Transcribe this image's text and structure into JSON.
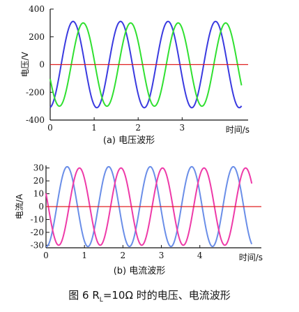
{
  "chart_data": [
    {
      "type": "line",
      "caption": "(a)  电压波形",
      "ylabel": "电压/V",
      "xlabel": "时间/s",
      "xlim": [
        0,
        4.5
      ],
      "ylim": [
        -400,
        400
      ],
      "x_ticks": [
        0,
        1,
        2,
        3
      ],
      "y_ticks": [
        400,
        200,
        0,
        -200,
        -400
      ],
      "reference_line": {
        "y": 0,
        "color": "#e02020"
      },
      "series": [
        {
          "color": "#3a3ae0",
          "amplitude": 311,
          "period": 1.08,
          "peak_x": 0.52,
          "x_range": [
            0,
            4.35
          ]
        },
        {
          "color": "#30e030",
          "amplitude": 300,
          "period": 1.08,
          "peak_x": 0.75,
          "x_range": [
            0,
            4.35
          ]
        }
      ]
    },
    {
      "type": "line",
      "caption": "(b)  电流波形",
      "ylabel": "电流/A",
      "xlabel": "时间/s",
      "xlim": [
        0,
        5.6
      ],
      "ylim": [
        -32,
        32
      ],
      "x_ticks": [
        0,
        1,
        2,
        3,
        4
      ],
      "y_ticks": [
        30,
        20,
        10,
        0,
        -10,
        -20,
        -30
      ],
      "reference_line": {
        "y": 0,
        "color": "#e02020"
      },
      "series": [
        {
          "color": "#6a8ee8",
          "amplitude": 31,
          "period": 1.08,
          "peak_x": 0.55,
          "x_range": [
            0,
            5.35
          ]
        },
        {
          "color": "#ee3aa8",
          "amplitude": 30,
          "period": 1.08,
          "peak_x": 0.87,
          "x_range": [
            0,
            5.35
          ]
        }
      ]
    }
  ],
  "figure_caption": {
    "prefix": "图 6 R",
    "sub": "L",
    "suffix": "=10Ω 时的电压、电流波形"
  }
}
